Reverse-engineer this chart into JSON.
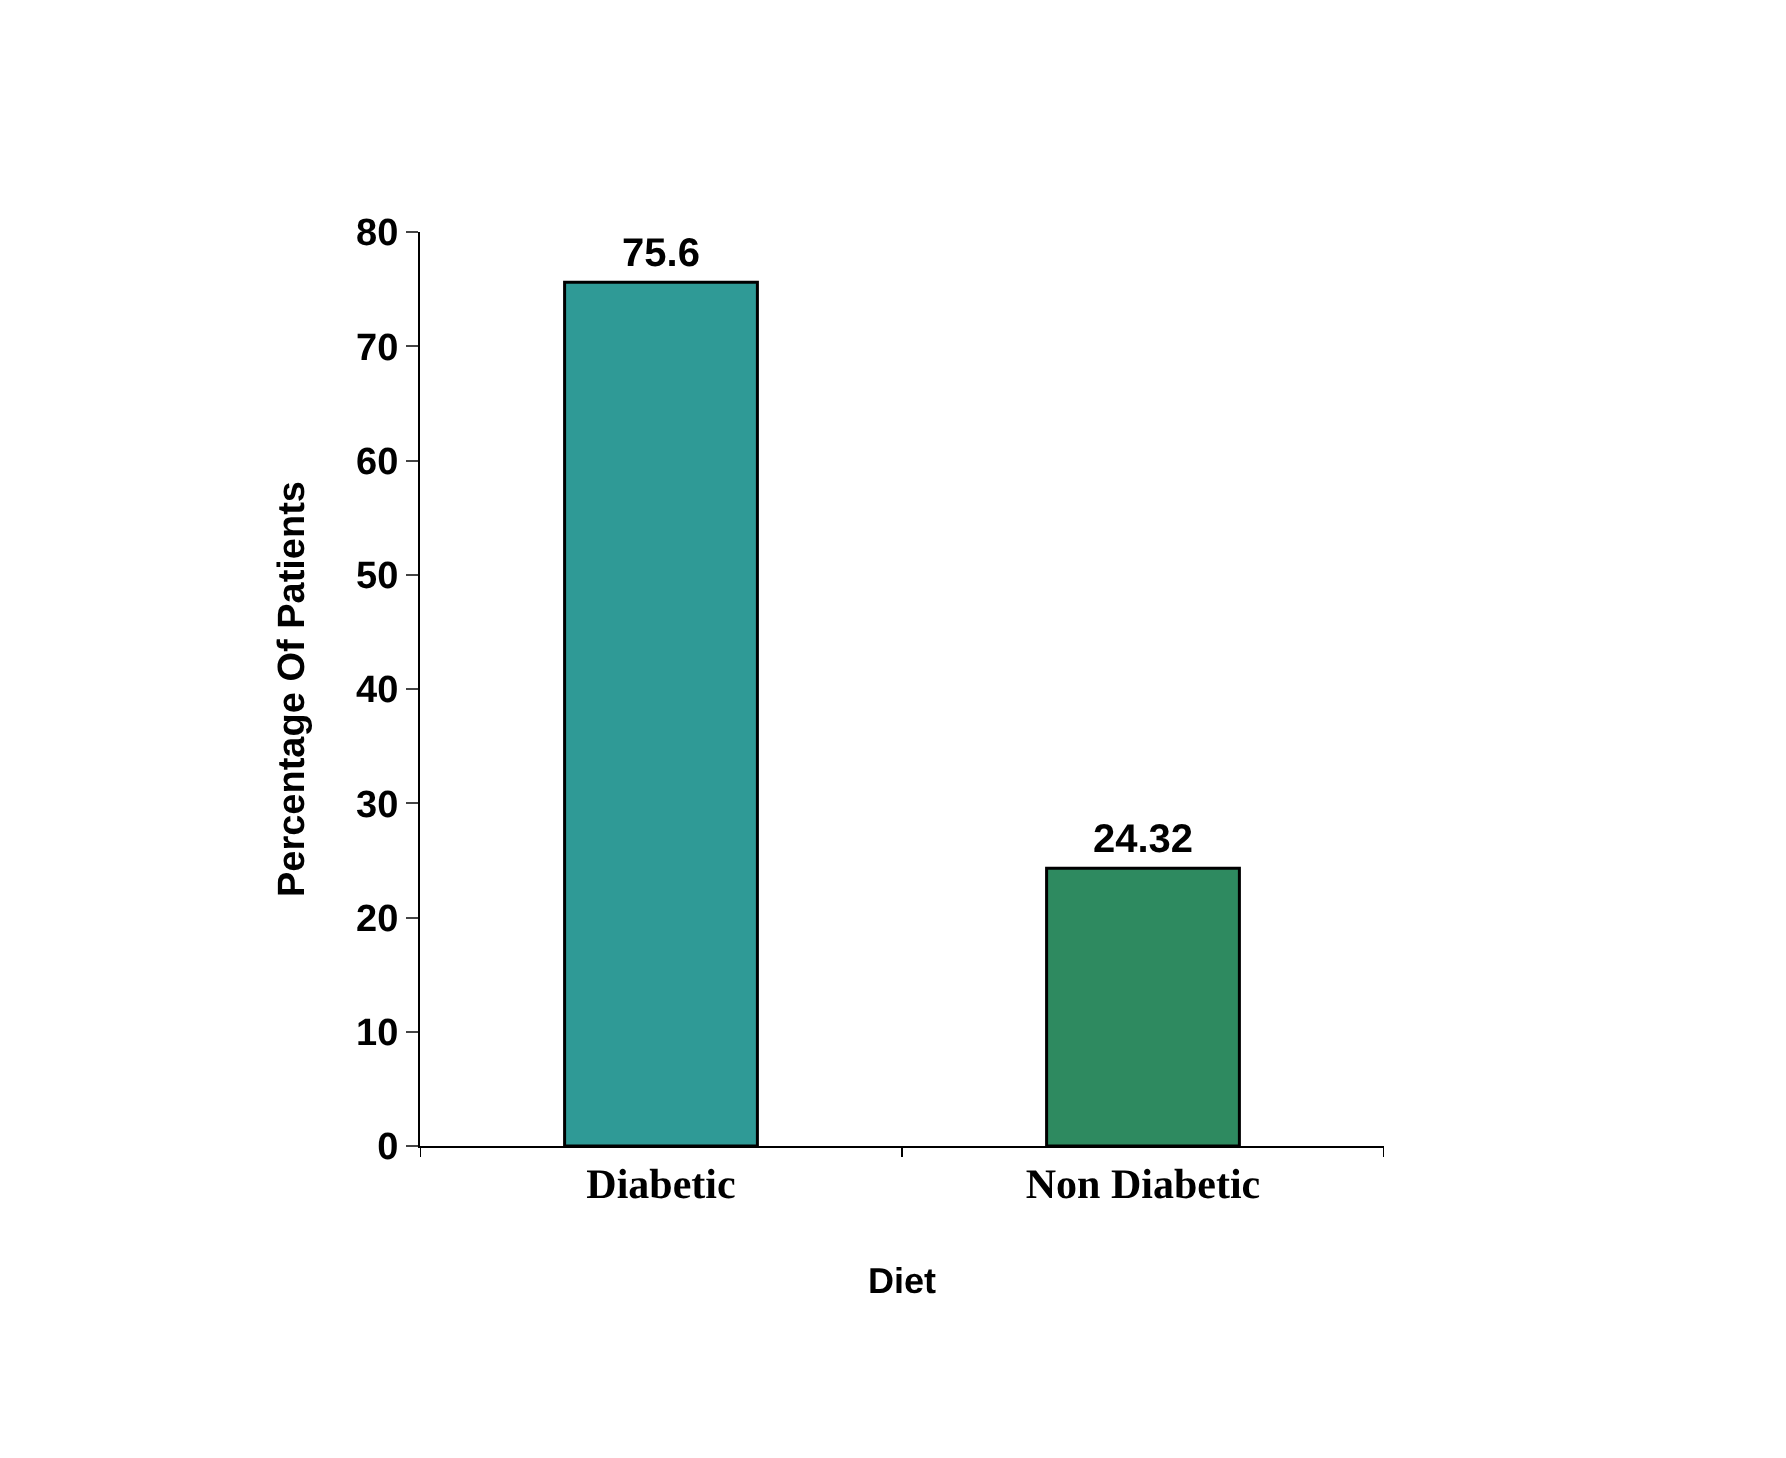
{
  "chart_data": {
    "type": "bar",
    "xlabel": "Diet",
    "ylabel": "Percentage Of Patients",
    "categories": [
      "Diabetic",
      "Non Diabetic"
    ],
    "values": [
      75.6,
      24.32
    ],
    "colors": [
      "#2f9a96",
      "#2e8a60"
    ],
    "data_labels": true,
    "ylim": [
      0,
      80
    ],
    "yticks": [
      0,
      10,
      20,
      30,
      40,
      50,
      60,
      70,
      80
    ],
    "legend": false
  }
}
